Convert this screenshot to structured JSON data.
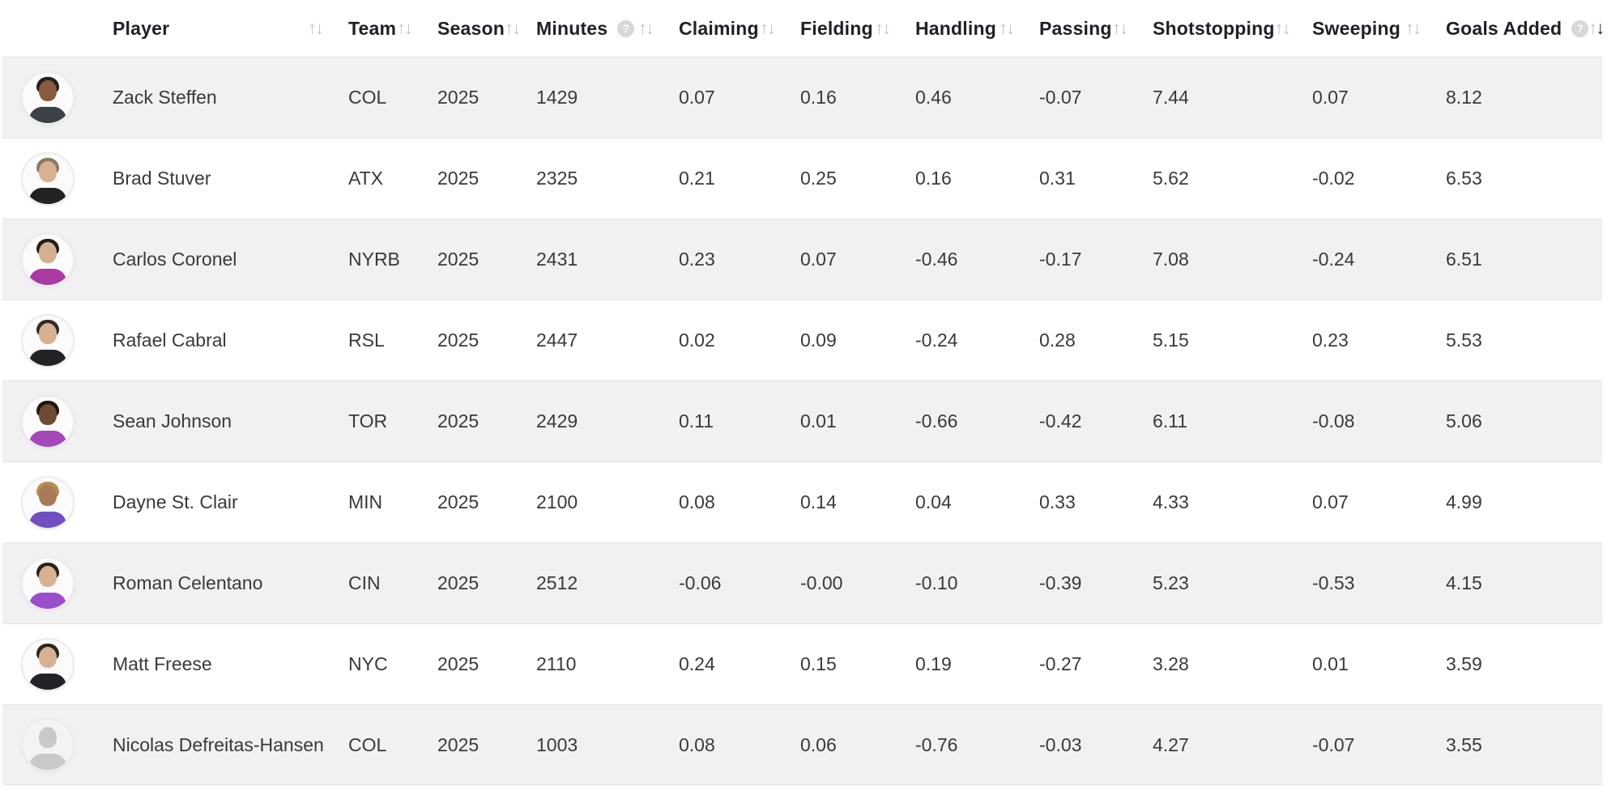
{
  "colors": {
    "row_stripe": "#f1f1f2",
    "row_border": "#e2e3e6",
    "header_text": "#202026",
    "body_text": "#39393e",
    "sort_icon": "#c3c4c8",
    "sort_icon_active": "#1e1e23",
    "help_icon_bg": "#d6d7da"
  },
  "icons": {
    "sort_up_glyph": "↑",
    "sort_down_glyph": "↓",
    "help_glyph": "?"
  },
  "table": {
    "columns": [
      {
        "key": "player",
        "label": "Player",
        "help": false,
        "sorted": null
      },
      {
        "key": "team",
        "label": "Team",
        "help": false,
        "sorted": null
      },
      {
        "key": "season",
        "label": "Season",
        "help": false,
        "sorted": null
      },
      {
        "key": "minutes",
        "label": "Minutes",
        "help": true,
        "sorted": null
      },
      {
        "key": "claiming",
        "label": "Claiming",
        "help": false,
        "sorted": null
      },
      {
        "key": "fielding",
        "label": "Fielding",
        "help": false,
        "sorted": null
      },
      {
        "key": "handling",
        "label": "Handling",
        "help": false,
        "sorted": null
      },
      {
        "key": "passing",
        "label": "Passing",
        "help": false,
        "sorted": null
      },
      {
        "key": "shotstopping",
        "label": "Shotstopping",
        "help": false,
        "sorted": null
      },
      {
        "key": "sweeping",
        "label": "Sweeping",
        "help": false,
        "sorted": null
      },
      {
        "key": "goals_added",
        "label": "Goals Added",
        "help": true,
        "sorted": "desc"
      }
    ],
    "rows": [
      {
        "player": "Zack Steffen",
        "team": "COL",
        "season": "2025",
        "minutes": "1429",
        "claiming": "0.07",
        "fielding": "0.16",
        "handling": "0.46",
        "passing": "-0.07",
        "shotstopping": "7.44",
        "sweeping": "0.07",
        "goals_added": "8.12",
        "avatar": {
          "skin": "#8a5b3e",
          "hair": "#26201c",
          "jersey": "#3c4049"
        }
      },
      {
        "player": "Brad Stuver",
        "team": "ATX",
        "season": "2025",
        "minutes": "2325",
        "claiming": "0.21",
        "fielding": "0.25",
        "handling": "0.16",
        "passing": "0.31",
        "shotstopping": "5.62",
        "sweeping": "-0.02",
        "goals_added": "6.53",
        "avatar": {
          "skin": "#d8b193",
          "hair": "#8a7a63",
          "jersey": "#232326"
        }
      },
      {
        "player": "Carlos Coronel",
        "team": "NYRB",
        "season": "2025",
        "minutes": "2431",
        "claiming": "0.23",
        "fielding": "0.07",
        "handling": "-0.46",
        "passing": "-0.17",
        "shotstopping": "7.08",
        "sweeping": "-0.24",
        "goals_added": "6.51",
        "avatar": {
          "skin": "#d6ae90",
          "hair": "#241d18",
          "jersey": "#a93ba3"
        }
      },
      {
        "player": "Rafael Cabral",
        "team": "RSL",
        "season": "2025",
        "minutes": "2447",
        "claiming": "0.02",
        "fielding": "0.09",
        "handling": "-0.24",
        "passing": "0.28",
        "shotstopping": "5.15",
        "sweeping": "0.23",
        "goals_added": "5.53",
        "avatar": {
          "skin": "#d8b193",
          "hair": "#332a23",
          "jersey": "#232326"
        }
      },
      {
        "player": "Sean Johnson",
        "team": "TOR",
        "season": "2025",
        "minutes": "2429",
        "claiming": "0.11",
        "fielding": "0.01",
        "handling": "-0.66",
        "passing": "-0.42",
        "shotstopping": "6.11",
        "sweeping": "-0.08",
        "goals_added": "5.06",
        "avatar": {
          "skin": "#6e4b33",
          "hair": "#1c1713",
          "jersey": "#a447b8"
        }
      },
      {
        "player": "Dayne St. Clair",
        "team": "MIN",
        "season": "2025",
        "minutes": "2100",
        "claiming": "0.08",
        "fielding": "0.14",
        "handling": "0.04",
        "passing": "0.33",
        "shotstopping": "4.33",
        "sweeping": "0.07",
        "goals_added": "4.99",
        "avatar": {
          "skin": "#a97a58",
          "hair": "#b98d52",
          "jersey": "#6f4fc2"
        }
      },
      {
        "player": "Roman Celentano",
        "team": "CIN",
        "season": "2025",
        "minutes": "2512",
        "claiming": "-0.06",
        "fielding": "-0.00",
        "handling": "-0.10",
        "passing": "-0.39",
        "shotstopping": "5.23",
        "sweeping": "-0.53",
        "goals_added": "4.15",
        "avatar": {
          "skin": "#d8b193",
          "hair": "#2a221c",
          "jersey": "#9b4ecb"
        }
      },
      {
        "player": "Matt Freese",
        "team": "NYC",
        "season": "2025",
        "minutes": "2110",
        "claiming": "0.24",
        "fielding": "0.15",
        "handling": "0.19",
        "passing": "-0.27",
        "shotstopping": "3.28",
        "sweeping": "0.01",
        "goals_added": "3.59",
        "avatar": {
          "skin": "#d8b193",
          "hair": "#2b241e",
          "jersey": "#232327"
        }
      },
      {
        "player": "Nicolas Defreitas-Hansen",
        "team": "COL",
        "season": "2025",
        "minutes": "1003",
        "claiming": "0.08",
        "fielding": "0.06",
        "handling": "-0.76",
        "passing": "-0.03",
        "shotstopping": "4.27",
        "sweeping": "-0.07",
        "goals_added": "3.55",
        "avatar": {
          "placeholder": true,
          "skin": "#c8c9cb",
          "hair": "",
          "jersey": "#c8c9cb"
        }
      }
    ]
  }
}
